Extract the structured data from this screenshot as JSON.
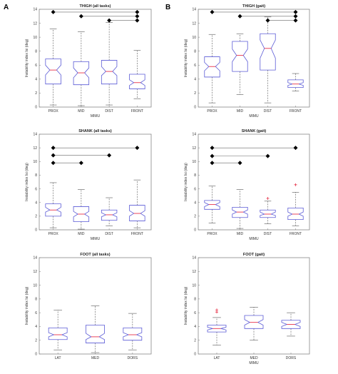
{
  "chart_data": [
    {
      "type": "box",
      "panel_label": "A",
      "title": "THIGH (all tasks)",
      "xlabel": "MIMU",
      "ylabel": "Instability index Isi (deg)",
      "ylim": [
        0,
        14
      ],
      "yticks": [
        0,
        2,
        4,
        6,
        8,
        10,
        12,
        14
      ],
      "categories": [
        "PROX",
        "MID",
        "DIST",
        "FRONT"
      ],
      "boxes": [
        {
          "category": "PROX",
          "whisker_low": 0.3,
          "q1": 3.3,
          "notch_low": 4.6,
          "median": 5.3,
          "notch_high": 6.0,
          "q3": 6.9,
          "whisker_high": 11.2,
          "outliers": []
        },
        {
          "category": "MID",
          "whisker_low": 0.2,
          "q1": 3.2,
          "notch_low": 4.2,
          "median": 4.9,
          "notch_high": 5.6,
          "q3": 6.5,
          "whisker_high": 10.8,
          "outliers": []
        },
        {
          "category": "DIST",
          "whisker_low": 0.3,
          "q1": 3.3,
          "notch_low": 4.5,
          "median": 5.1,
          "notch_high": 5.8,
          "q3": 6.7,
          "whisker_high": 12.1,
          "outliers": []
        },
        {
          "category": "FRONT",
          "whisker_low": 1.2,
          "q1": 2.6,
          "notch_low": 3.1,
          "median": 3.5,
          "notch_high": 3.9,
          "q3": 4.7,
          "whisker_high": 8.1,
          "outliers": []
        }
      ],
      "significance": [
        {
          "from": "PROX",
          "to": "FRONT",
          "y": 13.6
        },
        {
          "from": "MID",
          "to": "FRONT",
          "y": 13.0
        },
        {
          "from": "DIST",
          "to": "FRONT",
          "y": 12.4
        }
      ]
    },
    {
      "type": "box",
      "panel_label": "B",
      "title": "THIGH (gait)",
      "xlabel": "MIMU",
      "ylabel": "Instability index Isi (deg)",
      "ylim": [
        0,
        14
      ],
      "yticks": [
        0,
        2,
        4,
        6,
        8,
        10,
        12,
        14
      ],
      "categories": [
        "PROX",
        "MID",
        "DIST",
        "FRONT"
      ],
      "boxes": [
        {
          "category": "PROX",
          "whisker_low": 0.6,
          "q1": 4.3,
          "notch_low": 5.2,
          "median": 5.8,
          "notch_high": 6.4,
          "q3": 7.2,
          "whisker_high": 10.4,
          "outliers": []
        },
        {
          "category": "MID",
          "whisker_low": 1.8,
          "q1": 5.1,
          "notch_low": 6.5,
          "median": 7.4,
          "notch_high": 8.3,
          "q3": 9.4,
          "whisker_high": 10.5,
          "outliers": []
        },
        {
          "category": "DIST",
          "whisker_low": 0.6,
          "q1": 5.3,
          "notch_low": 7.0,
          "median": 8.4,
          "notch_high": 9.6,
          "q3": 10.5,
          "whisker_high": 12.9,
          "outliers": []
        },
        {
          "category": "FRONT",
          "whisker_low": 2.3,
          "q1": 2.8,
          "notch_low": 3.1,
          "median": 3.3,
          "notch_high": 3.5,
          "q3": 3.9,
          "whisker_high": 4.8,
          "outliers": []
        }
      ],
      "significance": [
        {
          "from": "PROX",
          "to": "FRONT",
          "y": 13.6
        },
        {
          "from": "MID",
          "to": "FRONT",
          "y": 13.0
        },
        {
          "from": "DIST",
          "to": "FRONT",
          "y": 12.4
        }
      ]
    },
    {
      "type": "box",
      "title": "SHANK (all tasks)",
      "xlabel": "MIMU",
      "ylabel": "Instability index Isi (deg)",
      "ylim": [
        0,
        14
      ],
      "yticks": [
        0,
        2,
        4,
        6,
        8,
        10,
        12,
        14
      ],
      "categories": [
        "PROX",
        "MID",
        "DIST",
        "FRONT"
      ],
      "boxes": [
        {
          "category": "PROX",
          "whisker_low": 0.3,
          "q1": 2.0,
          "notch_low": 2.6,
          "median": 2.9,
          "notch_high": 3.3,
          "q3": 3.8,
          "whisker_high": 6.9,
          "outliers": []
        },
        {
          "category": "MID",
          "whisker_low": 0.1,
          "q1": 1.2,
          "notch_low": 1.9,
          "median": 2.3,
          "notch_high": 2.7,
          "q3": 3.4,
          "whisker_high": 5.9,
          "outliers": []
        },
        {
          "category": "DIST",
          "whisker_low": 0.6,
          "q1": 1.4,
          "notch_low": 1.9,
          "median": 2.2,
          "notch_high": 2.5,
          "q3": 2.9,
          "whisker_high": 4.7,
          "outliers": []
        },
        {
          "category": "FRONT",
          "whisker_low": 0.3,
          "q1": 1.3,
          "notch_low": 2.0,
          "median": 2.4,
          "notch_high": 2.8,
          "q3": 3.6,
          "whisker_high": 7.3,
          "outliers": []
        }
      ],
      "significance": [
        {
          "from": "PROX",
          "to": "FRONT",
          "y": 12.0
        },
        {
          "from": "PROX",
          "to": "DIST",
          "y": 10.9
        },
        {
          "from": "PROX",
          "to": "MID",
          "y": 9.8
        }
      ]
    },
    {
      "type": "box",
      "title": "SHANK (gait)",
      "xlabel": "MIMU",
      "ylabel": "Instability index Isi (deg)",
      "ylim": [
        0,
        14
      ],
      "yticks": [
        0,
        2,
        4,
        6,
        8,
        10,
        12,
        14
      ],
      "categories": [
        "PROX",
        "MID",
        "DIST",
        "FRONT"
      ],
      "boxes": [
        {
          "category": "PROX",
          "whisker_low": 1.0,
          "q1": 3.0,
          "notch_low": 3.4,
          "median": 3.7,
          "notch_high": 4.0,
          "q3": 4.3,
          "whisker_high": 6.4,
          "outliers": []
        },
        {
          "category": "MID",
          "whisker_low": 0.2,
          "q1": 1.8,
          "notch_low": 2.3,
          "median": 2.6,
          "notch_high": 2.9,
          "q3": 3.3,
          "whisker_high": 5.9,
          "outliers": []
        },
        {
          "category": "DIST",
          "whisker_low": 0.9,
          "q1": 1.8,
          "notch_low": 2.1,
          "median": 2.3,
          "notch_high": 2.6,
          "q3": 2.9,
          "whisker_high": 4.2,
          "outliers": [
            4.6
          ]
        },
        {
          "category": "FRONT",
          "whisker_low": 0.6,
          "q1": 1.5,
          "notch_low": 2.0,
          "median": 2.3,
          "notch_high": 2.6,
          "q3": 3.2,
          "whisker_high": 5.5,
          "outliers": [
            6.6
          ]
        }
      ],
      "significance": [
        {
          "from": "PROX",
          "to": "FRONT",
          "y": 12.0
        },
        {
          "from": "PROX",
          "to": "DIST",
          "y": 10.8
        },
        {
          "from": "PROX",
          "to": "MID",
          "y": 9.8
        }
      ]
    },
    {
      "type": "box",
      "title": "FOOT (all tasks)",
      "xlabel": "",
      "ylabel": "Instability index Isi (deg)",
      "ylim": [
        0,
        14
      ],
      "yticks": [
        0,
        2,
        4,
        6,
        8,
        10,
        12,
        14
      ],
      "categories": [
        "LAT",
        "MED",
        "DORS"
      ],
      "boxes": [
        {
          "category": "LAT",
          "whisker_low": 0.6,
          "q1": 2.1,
          "notch_low": 2.5,
          "median": 2.8,
          "notch_high": 3.1,
          "q3": 3.8,
          "whisker_high": 6.4,
          "outliers": []
        },
        {
          "category": "MED",
          "whisker_low": 0.2,
          "q1": 1.6,
          "notch_low": 2.1,
          "median": 2.5,
          "notch_high": 3.0,
          "q3": 4.2,
          "whisker_high": 7.0,
          "outliers": []
        },
        {
          "category": "DORS",
          "whisker_low": 0.6,
          "q1": 2.0,
          "notch_low": 2.5,
          "median": 2.8,
          "notch_high": 3.1,
          "q3": 3.8,
          "whisker_high": 5.9,
          "outliers": []
        }
      ],
      "significance": []
    },
    {
      "type": "box",
      "title": "FOOT (gait)",
      "xlabel": "MIMU",
      "ylabel": "Instability index Isi (deg)",
      "ylim": [
        0,
        14
      ],
      "yticks": [
        0,
        2,
        4,
        6,
        8,
        10,
        12,
        14
      ],
      "categories": [
        "LAT",
        "MED",
        "DORS"
      ],
      "boxes": [
        {
          "category": "LAT",
          "whisker_low": 1.3,
          "q1": 3.2,
          "notch_low": 3.5,
          "median": 3.7,
          "notch_high": 3.9,
          "q3": 4.2,
          "whisker_high": 5.3,
          "outliers": [
            6.1,
            6.4
          ]
        },
        {
          "category": "MED",
          "whisker_low": 2.0,
          "q1": 3.7,
          "notch_low": 4.2,
          "median": 4.6,
          "notch_high": 5.0,
          "q3": 5.6,
          "whisker_high": 6.8,
          "outliers": []
        },
        {
          "category": "DORS",
          "whisker_low": 2.6,
          "q1": 3.7,
          "notch_low": 4.0,
          "median": 4.3,
          "notch_high": 4.6,
          "q3": 4.9,
          "whisker_high": 6.0,
          "outliers": []
        }
      ],
      "significance": []
    }
  ],
  "colors": {
    "box": "#5b5bd6",
    "median": "#e8334a",
    "whisker": "#555555",
    "axis": "#888888",
    "significance_line": "#666666",
    "significance_marker": "#000000",
    "outlier": "#e8334a"
  }
}
